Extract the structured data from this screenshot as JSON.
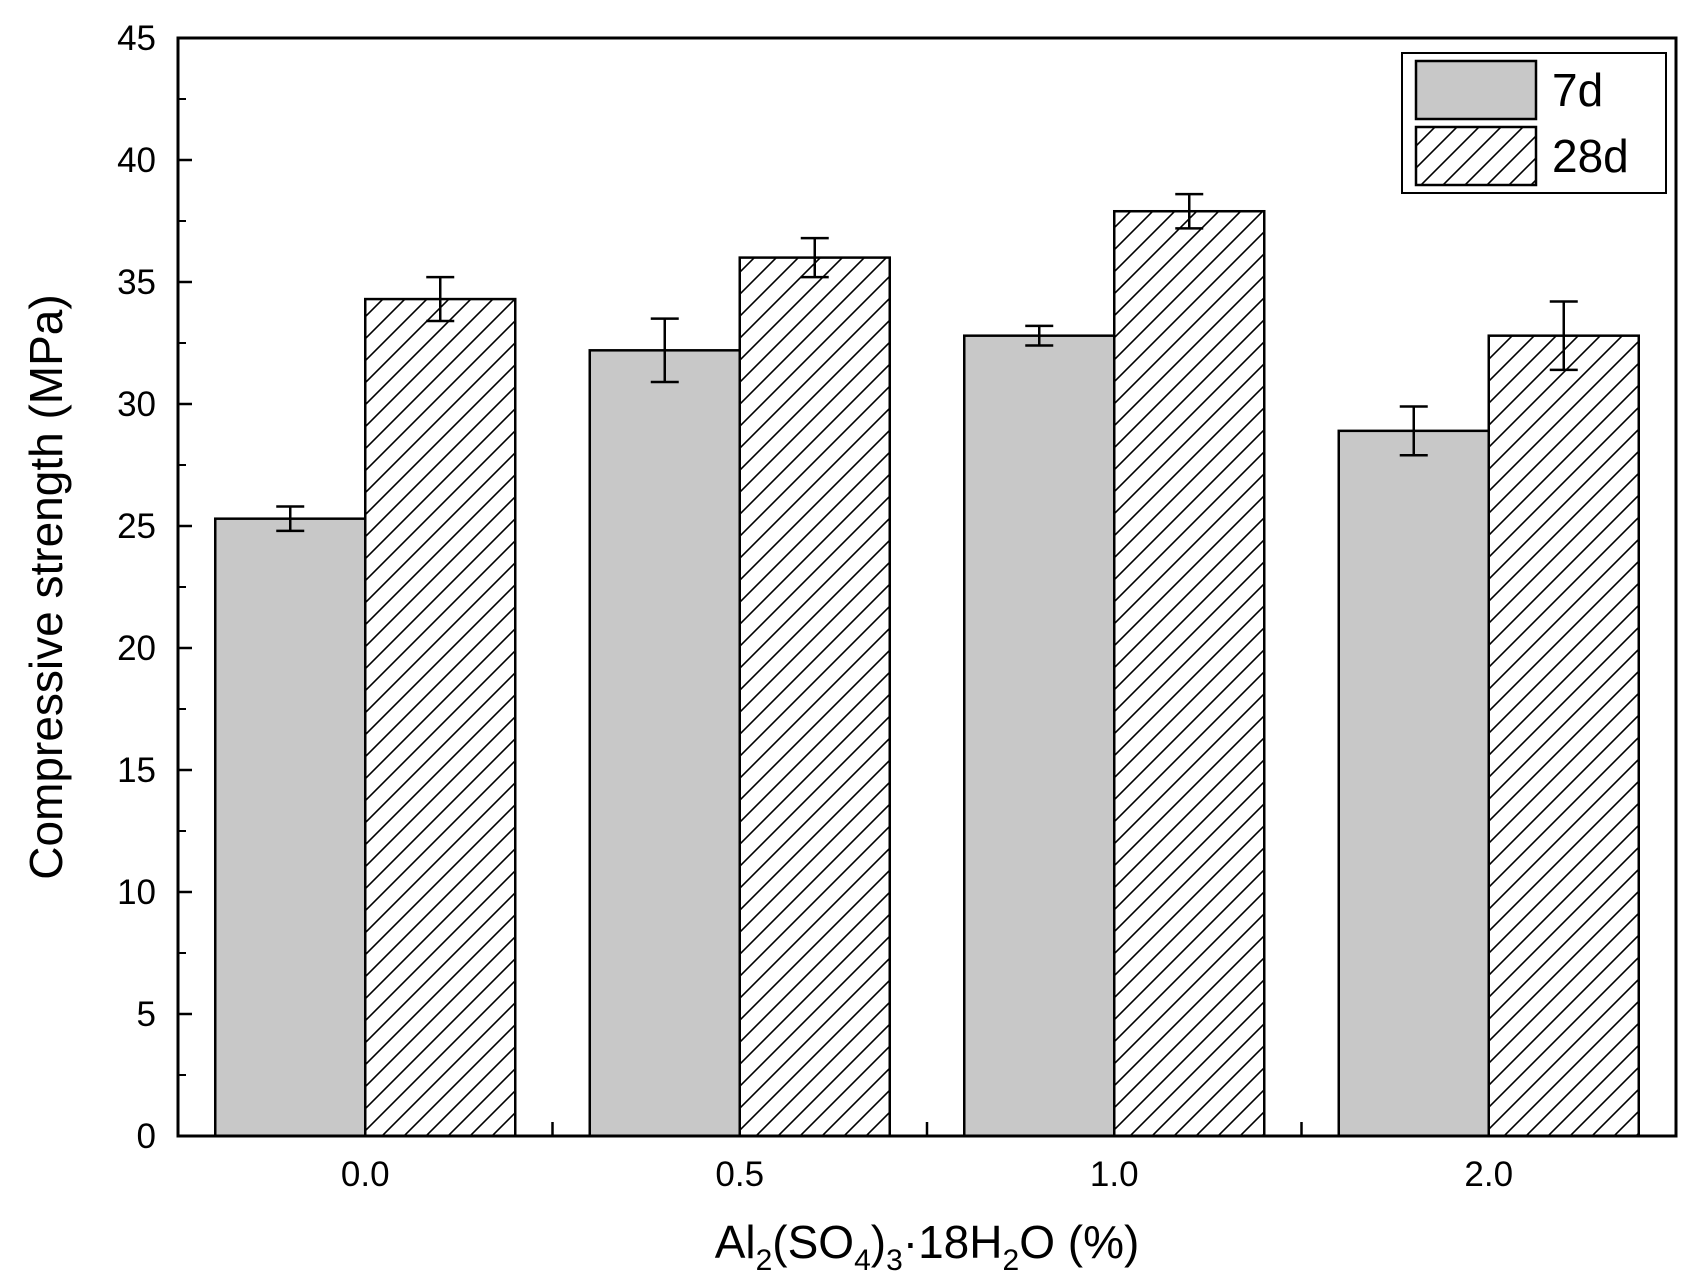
{
  "chart_data": {
    "type": "bar",
    "categories": [
      "0.0",
      "0.5",
      "1.0",
      "2.0"
    ],
    "series": [
      {
        "name": "7d",
        "values": [
          25.3,
          32.2,
          32.8,
          28.9
        ],
        "errors": [
          0.5,
          1.3,
          0.4,
          1.0
        ],
        "fill": "#c8c8c8",
        "pattern": "solid"
      },
      {
        "name": "28d",
        "values": [
          34.3,
          36.0,
          37.9,
          32.8
        ],
        "errors": [
          0.9,
          0.8,
          0.7,
          1.4
        ],
        "fill": "#ffffff",
        "pattern": "hatch"
      }
    ],
    "xlabel": {
      "base": "Al",
      "sub1": "2",
      "mid": "(SO",
      "sub2": "4",
      "mid2": ")",
      "sub3": "3",
      "mid3": "·18H",
      "sub4": "2",
      "tail": "O (%)"
    },
    "ylabel": "Compressive strength (MPa)",
    "ylim": [
      0,
      45
    ],
    "yticks": [
      0,
      5,
      10,
      15,
      20,
      25,
      30,
      35,
      40,
      45
    ],
    "legend_position": "top-right",
    "grid": false
  }
}
